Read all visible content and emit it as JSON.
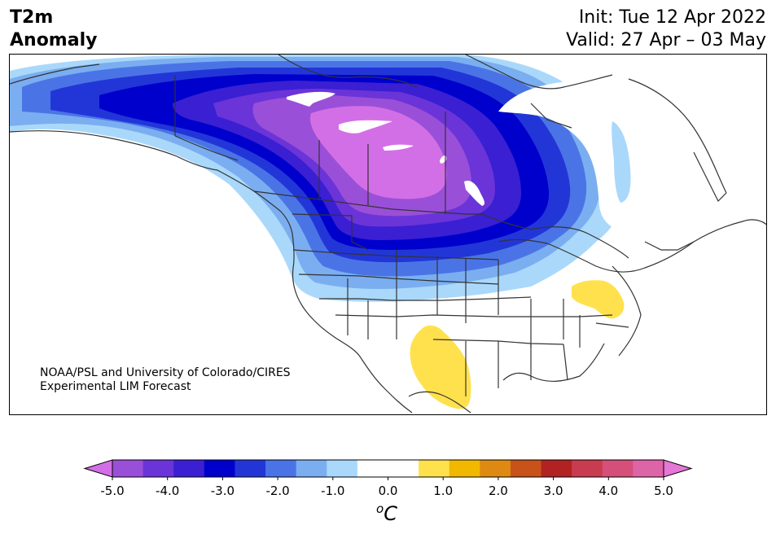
{
  "header": {
    "variable": "T2m",
    "subtitle": "Anomaly",
    "init": "Init: Tue 12 Apr 2022",
    "valid": "Valid: 27 Apr – 03 May"
  },
  "credit": {
    "line1": "NOAA/PSL and University of Colorado/CIRES",
    "line2": "Experimental LIM Forecast"
  },
  "colorbar": {
    "ticks": [
      "-5.0",
      "-4.0",
      "-3.0",
      "-2.0",
      "-1.0",
      "0.0",
      "1.0",
      "2.0",
      "3.0",
      "4.0",
      "5.0"
    ],
    "unit_sup": "o",
    "unit": "C",
    "colors": [
      "#d36fe6",
      "#9a4fd8",
      "#6a34d8",
      "#3b1fd2",
      "#0000cc",
      "#2236d8",
      "#4a74e6",
      "#7aaef0",
      "#aad8fa",
      "#ffffff",
      "#ffffff",
      "#ffe14d",
      "#f2b800",
      "#de8a12",
      "#c7521a",
      "#b22222",
      "#c83c50",
      "#d4507a",
      "#de64a8",
      "#e677d6"
    ]
  },
  "map_colors": {
    "land_line": "#333333",
    "cold_1": "#aad8fa",
    "cold_15": "#7aaef0",
    "cold_2": "#4a74e6",
    "cold_25": "#2236d8",
    "cold_3": "#0000cc",
    "cold_35": "#3b1fd2",
    "cold_4": "#6a34d8",
    "cold_45": "#9a4fd8",
    "cold_5": "#d36fe6",
    "warm_1": "#ffe14d"
  }
}
